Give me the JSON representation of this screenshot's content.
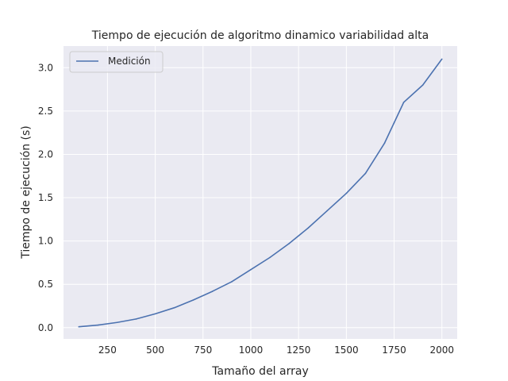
{
  "chart_data": {
    "type": "line",
    "title": "Tiempo de ejecución de algoritmo dinamico variabilidad alta",
    "xlabel": "Tamaño del array",
    "ylabel": "Tiempo de ejecución (s)",
    "xlim": [
      20,
      2080
    ],
    "ylim": [
      -0.13,
      3.25
    ],
    "xticks": [
      250,
      500,
      750,
      1000,
      1250,
      1500,
      1750,
      2000
    ],
    "yticks": [
      0.0,
      0.5,
      1.0,
      1.5,
      2.0,
      2.5,
      3.0
    ],
    "xtick_labels": [
      "250",
      "500",
      "750",
      "1000",
      "1250",
      "1500",
      "1750",
      "2000"
    ],
    "ytick_labels": [
      "0.0",
      "0.5",
      "1.0",
      "1.5",
      "2.0",
      "2.5",
      "3.0"
    ],
    "grid": true,
    "legend_position": "upper-left",
    "background": "#eaeaf2",
    "series": [
      {
        "name": "Medición",
        "color": "#4c72b0",
        "x": [
          100,
          200,
          300,
          400,
          500,
          600,
          700,
          800,
          900,
          1000,
          1100,
          1200,
          1300,
          1400,
          1500,
          1600,
          1700,
          1800,
          1900,
          2000
        ],
        "y": [
          0.01,
          0.03,
          0.06,
          0.1,
          0.16,
          0.23,
          0.32,
          0.42,
          0.53,
          0.67,
          0.81,
          0.97,
          1.15,
          1.35,
          1.55,
          1.78,
          2.13,
          2.6,
          2.8,
          3.1
        ]
      }
    ]
  }
}
